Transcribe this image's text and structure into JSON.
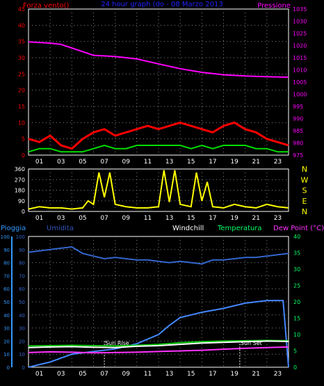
{
  "chart_data": [
    {
      "type": "line",
      "title": "24 hour graph (do - 08 Marzo 2013",
      "left_axis": {
        "label": "Forza vento()",
        "range": [
          0,
          45
        ],
        "ticks": [
          "0",
          "5",
          "10",
          "15",
          "20",
          "25",
          "30",
          "35",
          "40",
          "45"
        ]
      },
      "right_axis": {
        "label": "Pressione",
        "range": [
          975,
          1035
        ],
        "ticks": [
          "975",
          "980",
          "985",
          "990",
          "995",
          "1000",
          "1005",
          "1010",
          "1015",
          "1020",
          "1025",
          "1030",
          "1035"
        ]
      },
      "x_ticks": [
        "01",
        "03",
        "05",
        "07",
        "09",
        "11",
        "13",
        "15",
        "17",
        "19",
        "21",
        "23"
      ],
      "x_ticks_extra": [
        "03",
        "05"
      ],
      "series": [
        {
          "color": "#ff00ff",
          "axis": "right",
          "x": [
            0,
            2,
            3,
            4,
            5,
            6,
            8,
            10,
            12,
            14,
            16,
            18,
            20,
            22,
            24
          ],
          "y": [
            1021.5,
            1021,
            1020.5,
            1019,
            1017.5,
            1016,
            1015.5,
            1014.5,
            1012.5,
            1010.5,
            1009,
            1008,
            1007.5,
            1007.2,
            1007
          ]
        },
        {
          "color": "#ff0000",
          "axis": "left",
          "x": [
            0,
            1,
            2,
            3,
            4,
            5,
            6,
            7,
            8,
            9,
            10,
            11,
            12,
            13,
            14,
            15,
            16,
            17,
            18,
            19,
            20,
            21,
            22,
            23,
            24
          ],
          "y": [
            5,
            4,
            6,
            3,
            2,
            5,
            7,
            8,
            6,
            7,
            8,
            9,
            8,
            9,
            10,
            9,
            8,
            7,
            9,
            10,
            8,
            7,
            5,
            4,
            3
          ]
        },
        {
          "color": "#00dd00",
          "axis": "left",
          "x": [
            0,
            1,
            2,
            3,
            4,
            5,
            6,
            7,
            8,
            9,
            10,
            11,
            12,
            13,
            14,
            15,
            16,
            17,
            18,
            19,
            20,
            21,
            22,
            23,
            24
          ],
          "y": [
            1,
            2,
            2,
            1,
            1,
            1,
            2,
            3,
            2,
            2,
            3,
            3,
            3,
            3,
            3,
            2,
            3,
            2,
            3,
            3,
            3,
            2,
            2,
            1,
            1
          ]
        }
      ]
    },
    {
      "type": "line",
      "left_axis": {
        "range": [
          0,
          360
        ],
        "ticks": [
          "0",
          "90",
          "180",
          "270",
          "360"
        ]
      },
      "right_labels": [
        "N",
        "W",
        "S",
        "E",
        "N"
      ],
      "x_ticks": [
        "01",
        "03",
        "05",
        "07",
        "09",
        "11",
        "13",
        "15",
        "17",
        "19",
        "21",
        "23"
      ],
      "series": [
        {
          "color": "#ffff00",
          "x": [
            0,
            1,
            2,
            3,
            4,
            5,
            5.5,
            6,
            6.5,
            7,
            7.5,
            8,
            9,
            10,
            11,
            12,
            12.5,
            13,
            13.5,
            14,
            15,
            15.5,
            16,
            16.5,
            17,
            18,
            19,
            20,
            21,
            22,
            23,
            24
          ],
          "y": [
            20,
            40,
            30,
            30,
            20,
            30,
            90,
            60,
            330,
            120,
            330,
            60,
            40,
            30,
            30,
            40,
            350,
            80,
            350,
            60,
            40,
            330,
            90,
            250,
            40,
            30,
            60,
            40,
            30,
            60,
            40,
            30
          ]
        }
      ]
    },
    {
      "type": "line",
      "left_labels": [
        "Pioggia",
        "Umidita"
      ],
      "header_labels": [
        "Windchill",
        "Temperatura",
        "Dew Point (°C)"
      ],
      "left_axis": {
        "range": [
          0,
          100
        ],
        "ticks": [
          "0",
          "10",
          "20",
          "30",
          "40",
          "50",
          "60",
          "70",
          "80",
          "90",
          "100"
        ]
      },
      "right_axis": {
        "range": [
          0,
          40
        ],
        "ticks": [
          "0",
          "5",
          "10",
          "15",
          "20",
          "25",
          "30",
          "35",
          "40"
        ]
      },
      "x_ticks": [
        "01",
        "03",
        "05",
        "07",
        "09",
        "11",
        "13",
        "15",
        "17",
        "19",
        "21",
        "23"
      ],
      "markers": [
        "Sun Rise",
        "Sun Set"
      ],
      "series": [
        {
          "color": "#3366cc",
          "axis": "left",
          "x": [
            0,
            1,
            2,
            3,
            4,
            5,
            6,
            7,
            8,
            9,
            10,
            11,
            12,
            13,
            14,
            15,
            16,
            17,
            18,
            19,
            20,
            21,
            22,
            23,
            24
          ],
          "y": [
            88,
            89,
            90,
            91,
            92,
            87,
            85,
            83,
            84,
            83,
            82,
            82,
            81,
            80,
            81,
            80,
            79,
            82,
            82,
            83,
            84,
            84,
            85,
            86,
            87
          ]
        },
        {
          "color": "#4488ff",
          "axis": "left",
          "x": [
            0,
            2,
            4,
            6,
            8,
            10,
            12,
            13,
            14,
            15,
            16,
            18,
            20,
            21,
            22,
            23,
            23.5,
            24
          ],
          "y": [
            0,
            4,
            10,
            12,
            14,
            18,
            25,
            32,
            38,
            40,
            42,
            45,
            49,
            50,
            51,
            51,
            51,
            0
          ]
        },
        {
          "color": "#00cc00",
          "axis": "right",
          "x": [
            0,
            2,
            4,
            6,
            8,
            10,
            12,
            14,
            16,
            18,
            20,
            22,
            24
          ],
          "y": [
            6.5,
            6.6,
            6.7,
            6.6,
            6.5,
            6.7,
            7,
            7.5,
            7.8,
            8,
            8.1,
            8.2,
            8.1
          ]
        },
        {
          "color": "#ff33ff",
          "axis": "right",
          "x": [
            0,
            2,
            4,
            6,
            8,
            10,
            12,
            14,
            16,
            18,
            20,
            22,
            24
          ],
          "y": [
            4.5,
            4.7,
            4.6,
            4.4,
            4.5,
            4.6,
            4.8,
            5,
            5.2,
            5.5,
            5.8,
            6,
            6.2
          ]
        },
        {
          "color": "#ffffff",
          "axis": "right",
          "x": [
            0,
            2,
            4,
            6,
            8,
            10,
            12,
            14,
            16,
            18,
            20,
            22,
            24
          ],
          "y": [
            6,
            6.2,
            6.3,
            6.1,
            6,
            6.4,
            6.6,
            7,
            7.4,
            7.6,
            7.8,
            8,
            7.9
          ]
        }
      ]
    }
  ]
}
